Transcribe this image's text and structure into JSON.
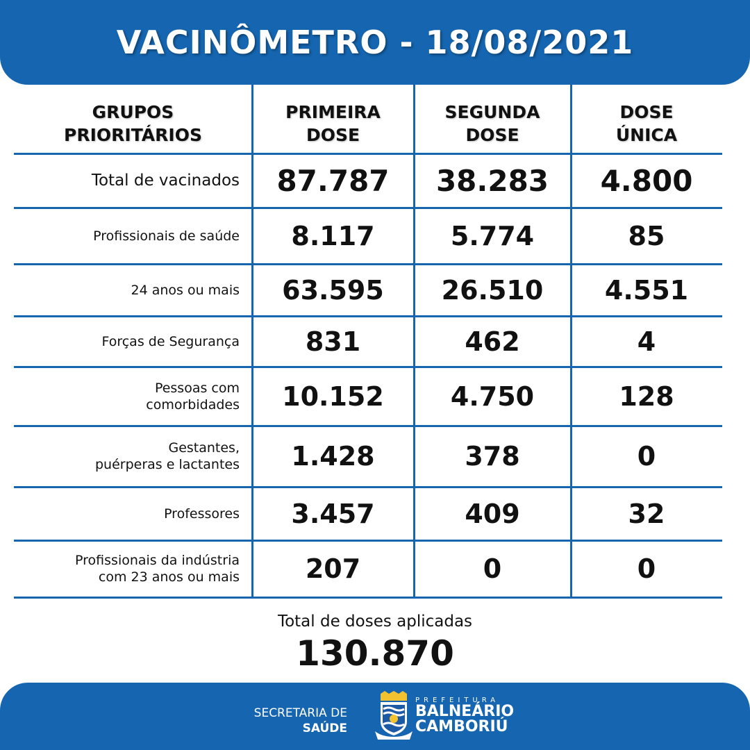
{
  "header": {
    "title": "VACINÔMETRO - 18/08/2021"
  },
  "table": {
    "columns": [
      "GRUPOS\nPRIORITÁRIOS",
      "PRIMEIRA\nDOSE",
      "SEGUNDA\nDOSE",
      "DOSE\nÚNICA"
    ],
    "rows": [
      {
        "label": "Total de vacinados",
        "values": [
          "87.787",
          "38.283",
          "4.800"
        ]
      },
      {
        "label": "Profissionais de saúde",
        "values": [
          "8.117",
          "5.774",
          "85"
        ]
      },
      {
        "label": "24 anos ou mais",
        "values": [
          "63.595",
          "26.510",
          "4.551"
        ]
      },
      {
        "label": "Forças de Segurança",
        "values": [
          "831",
          "462",
          "4"
        ]
      },
      {
        "label": "Pessoas com\ncomorbidades",
        "values": [
          "10.152",
          "4.750",
          "128"
        ]
      },
      {
        "label": "Gestantes,\npuérperas e lactantes",
        "values": [
          "1.428",
          "378",
          "0"
        ]
      },
      {
        "label": "Professores",
        "values": [
          "3.457",
          "409",
          "32"
        ]
      },
      {
        "label": "Profissionais da indústria\ncom 23 anos ou mais",
        "values": [
          "207",
          "0",
          "0"
        ]
      }
    ]
  },
  "totals": {
    "label": "Total de doses aplicadas",
    "value": "130.870"
  },
  "footer": {
    "secretaria_line1": "SECRETARIA DE",
    "secretaria_line2": "SAÚDE",
    "prefeitura": "PREFEITURA",
    "city_line1": "BALNEÁRIO",
    "city_line2": "CAMBORIÚ"
  },
  "colors": {
    "brand_blue": "#1565b0"
  }
}
